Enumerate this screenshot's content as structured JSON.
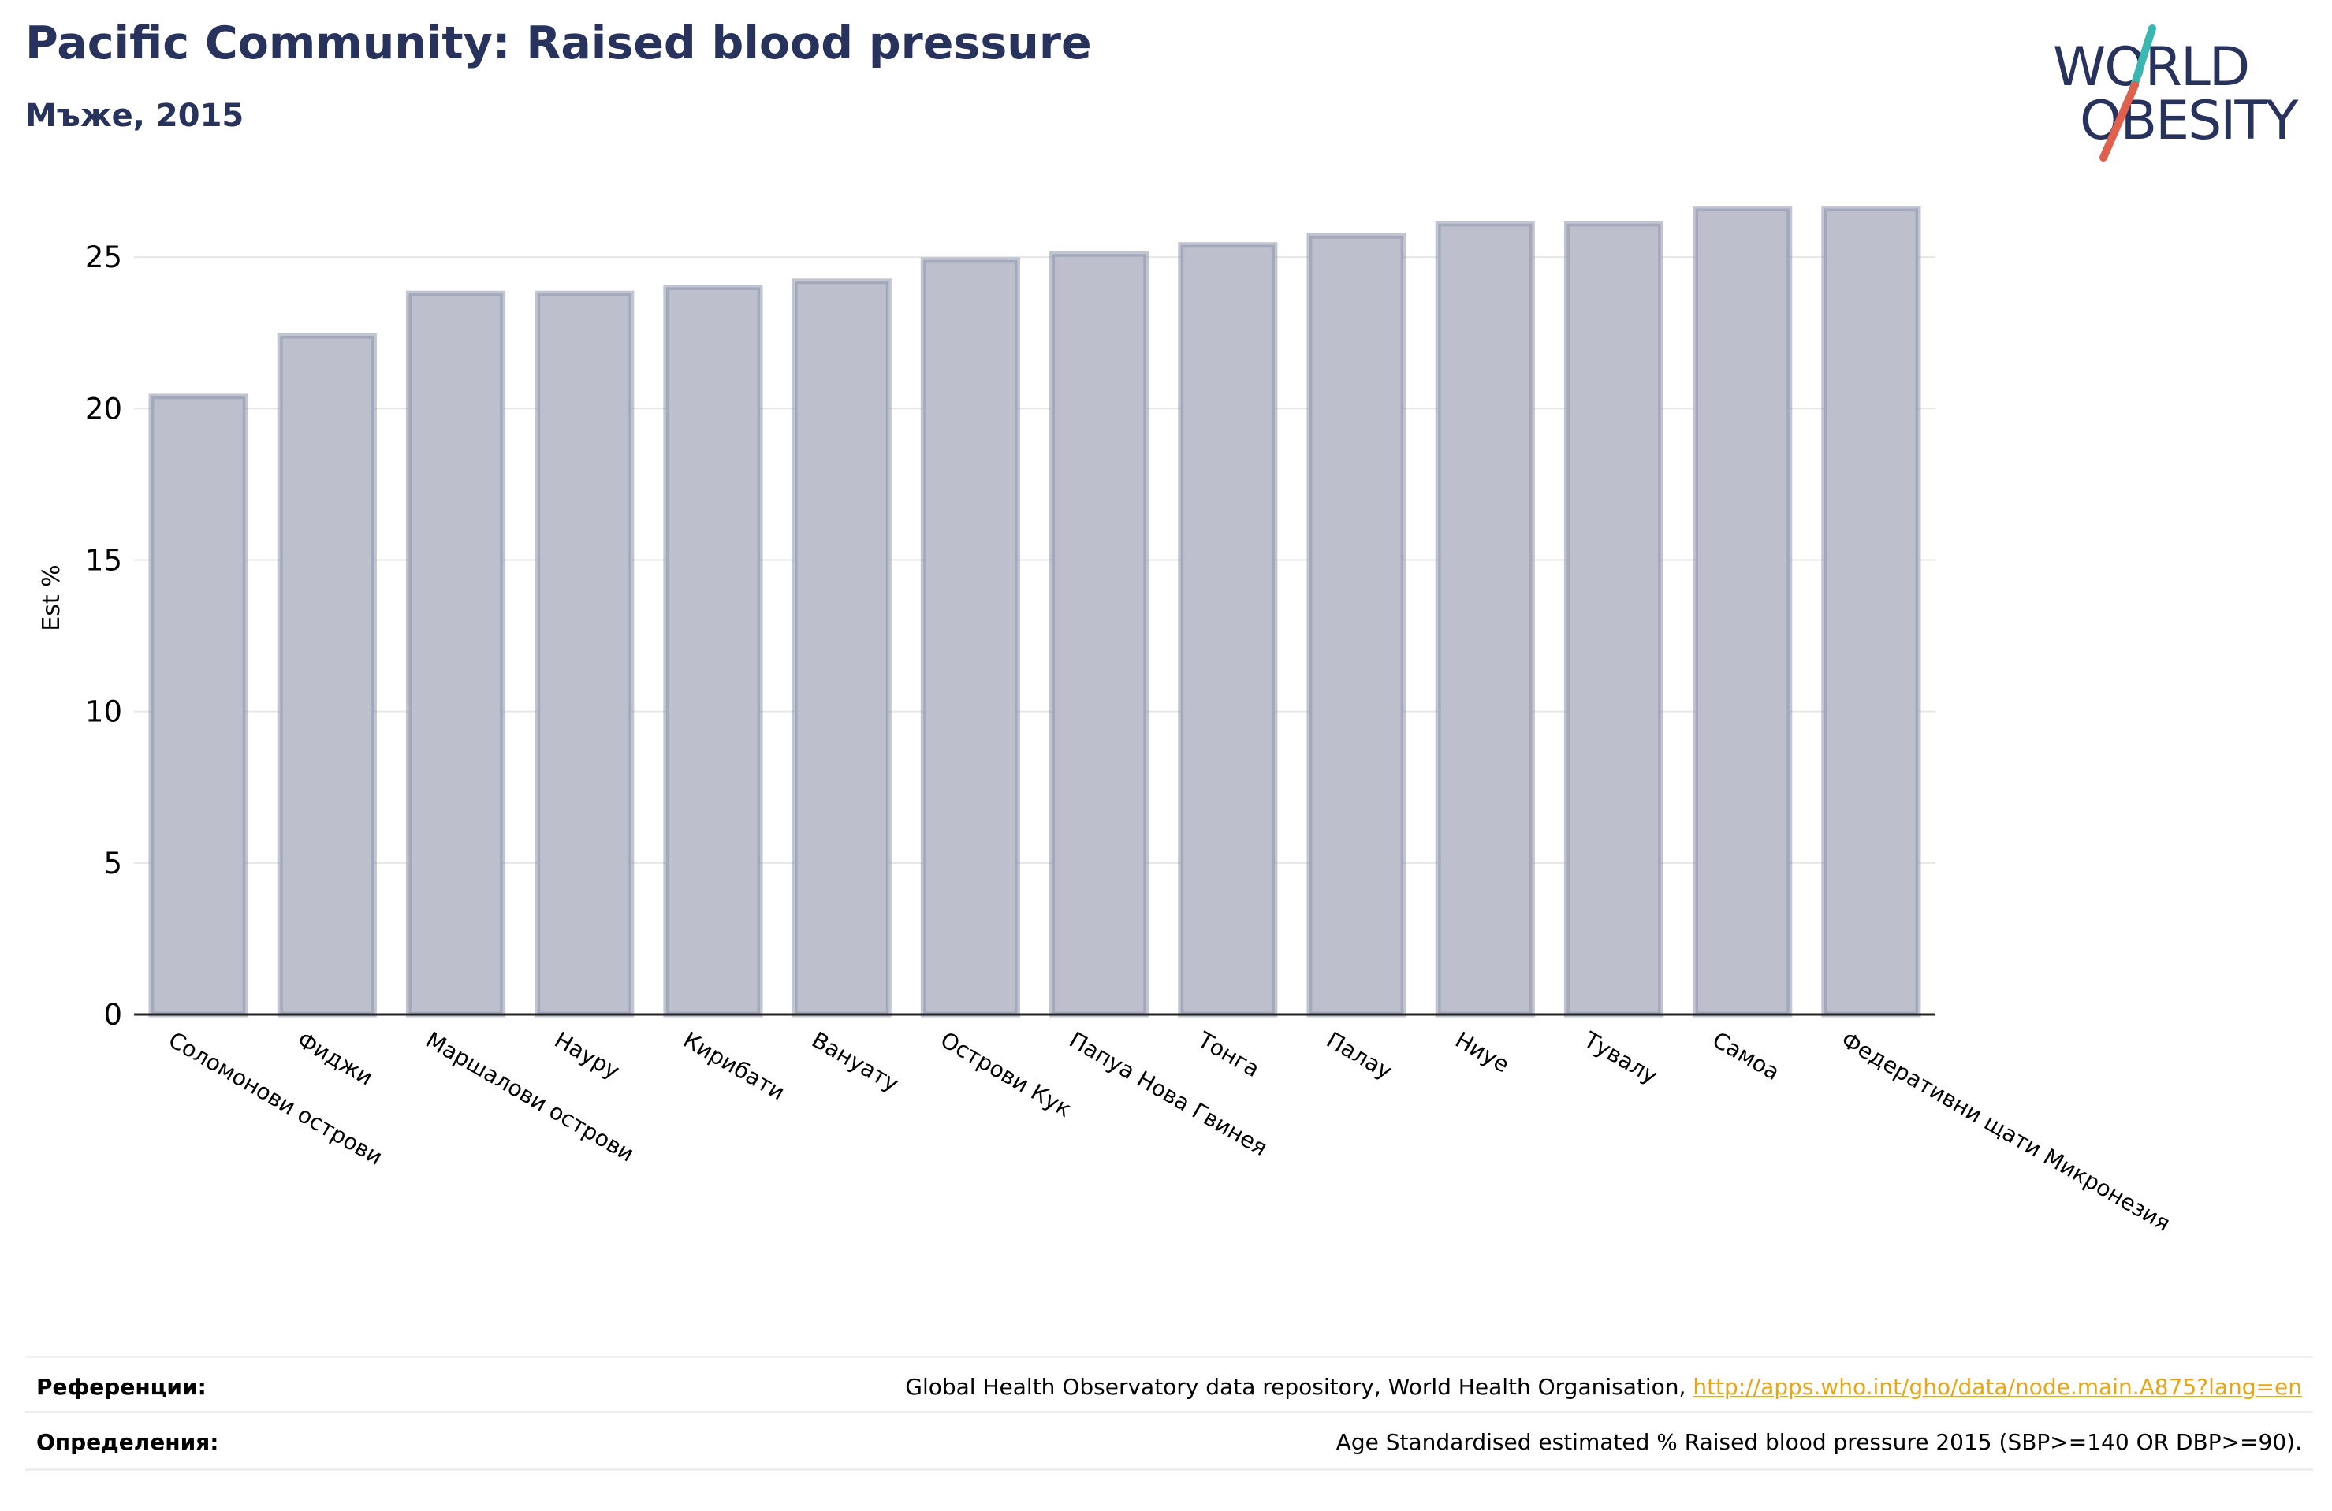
{
  "header": {
    "title": "Pacific Community: Raised blood pressure",
    "subtitle": "Мъже, 2015"
  },
  "logo": {
    "line1": "WORLD",
    "line2": "OBESITY",
    "text_color": "#27335c",
    "slash_colors": [
      "#3bb6b0",
      "#e0604e"
    ]
  },
  "chart_data": {
    "type": "bar",
    "title": "",
    "xlabel": "",
    "ylabel": "Est %",
    "ylim": [
      0,
      27.5
    ],
    "yticks": [
      0,
      5,
      10,
      15,
      20,
      25
    ],
    "grid": true,
    "categories": [
      "Соломонови острови",
      "Фиджи",
      "Маршалови острови",
      "Науру",
      "Кирибати",
      "Вануату",
      "Острови Кук",
      "Папуа Нова Гвинея",
      "Тонга",
      "Палау",
      "Ниуе",
      "Тувалу",
      "Самоа",
      "Федеративни щати Микронезия"
    ],
    "values": [
      20.4,
      22.4,
      23.8,
      23.8,
      24.0,
      24.2,
      24.9,
      25.1,
      25.4,
      25.7,
      26.1,
      26.1,
      26.6,
      26.6
    ],
    "bar_fill": "#bdc0cc",
    "bar_stroke": "#8e93ab"
  },
  "footer": {
    "references_label": "Референции:",
    "references_text": "Global Health Observatory data repository, World Health Organisation, ",
    "references_link": "http://apps.who.int/gho/data/node.main.A875?lang=en",
    "definitions_label": "Определения:",
    "definitions_text": "Age Standardised estimated % Raised blood pressure 2015 (SBP>=140 OR DBP>=90)."
  }
}
